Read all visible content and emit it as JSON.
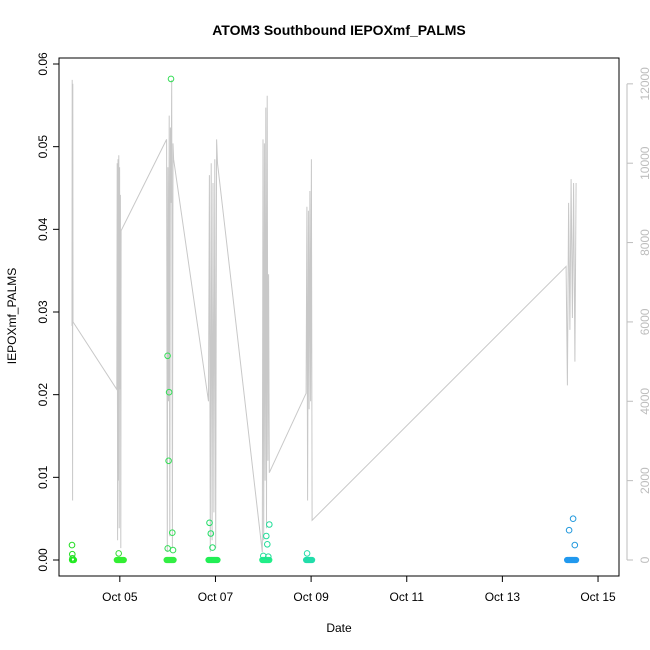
{
  "chart_data": {
    "type": "scatter",
    "title": "ATOM3 Southbound IEPOXmf_PALMS",
    "xlabel": "Date",
    "ylabel": "IEPOXmf_PALMS",
    "x_range": [
      "2017-10-04 00:00",
      "2017-10-15 04:00"
    ],
    "ylim": [
      0,
      0.06
    ],
    "y2lim": [
      0,
      12500
    ],
    "x_ticks": [
      {
        "label": "Oct 05",
        "date": "2017-10-05"
      },
      {
        "label": "Oct 07",
        "date": "2017-10-07"
      },
      {
        "label": "Oct 09",
        "date": "2017-10-09"
      },
      {
        "label": "Oct 11",
        "date": "2017-10-11"
      },
      {
        "label": "Oct 13",
        "date": "2017-10-13"
      },
      {
        "label": "Oct 15",
        "date": "2017-10-15"
      }
    ],
    "y_ticks": [
      "0.00",
      "0.01",
      "0.02",
      "0.03",
      "0.04",
      "0.05",
      "0.06"
    ],
    "y2_ticks": [
      "0",
      "2000",
      "4000",
      "6000",
      "8000",
      "10000",
      "12000"
    ],
    "grid": false,
    "legend": "none",
    "colors": {
      "secondary_line": "#c8c8c8",
      "axis": "#000000",
      "right_axis": "#bdbdbd"
    },
    "series": [
      {
        "role": "points (left axis)",
        "points": [
          {
            "date": "2017-10-04 00:00",
            "y": 0.0018,
            "color": "#22dd22"
          },
          {
            "date": "2017-10-04 00:10",
            "y": 0.0007,
            "color": "#22dd22"
          },
          {
            "date": "2017-10-04 00:15",
            "y": 0.0002,
            "color": "#22dd22"
          },
          {
            "date": "2017-10-04 23:25",
            "y": 0.0008,
            "color": "#33dd33"
          },
          {
            "date": "2017-10-06 00:00",
            "y": 0.0247,
            "color": "#33dd55"
          },
          {
            "date": "2017-10-06 00:03",
            "y": 0.0014,
            "color": "#33dd55"
          },
          {
            "date": "2017-10-06 00:30",
            "y": 0.012,
            "color": "#33dd55"
          },
          {
            "date": "2017-10-06 00:45",
            "y": 0.0203,
            "color": "#33dd55"
          },
          {
            "date": "2017-10-06 01:40",
            "y": 0.0582,
            "color": "#33dd55"
          },
          {
            "date": "2017-10-06 02:20",
            "y": 0.0033,
            "color": "#33dd55"
          },
          {
            "date": "2017-10-06 02:40",
            "y": 0.0012,
            "color": "#33dd55"
          },
          {
            "date": "2017-10-06 21:00",
            "y": 0.0045,
            "color": "#22dd66"
          },
          {
            "date": "2017-10-06 21:40",
            "y": 0.0032,
            "color": "#22dd66"
          },
          {
            "date": "2017-10-06 22:30",
            "y": 0.0015,
            "color": "#22dd66"
          },
          {
            "date": "2017-10-08 00:00",
            "y": 0.0005,
            "color": "#22dd99"
          },
          {
            "date": "2017-10-08 01:30",
            "y": 0.0029,
            "color": "#22dd99"
          },
          {
            "date": "2017-10-08 03:00",
            "y": 0.0043,
            "color": "#22dd99"
          },
          {
            "date": "2017-10-08 02:00",
            "y": 0.0019,
            "color": "#22dd99"
          },
          {
            "date": "2017-10-08 02:30",
            "y": 0.0004,
            "color": "#22dd99"
          },
          {
            "date": "2017-10-08 22:00",
            "y": 0.0008,
            "color": "#22ddaa"
          },
          {
            "date": "2017-10-14 09:30",
            "y": 0.0036,
            "color": "#2299dd"
          },
          {
            "date": "2017-10-14 11:30",
            "y": 0.005,
            "color": "#2299dd"
          },
          {
            "date": "2017-10-14 12:20",
            "y": 0.0018,
            "color": "#2299dd"
          }
        ],
        "baseline_clusters": [
          {
            "from": "2017-10-04 00:00",
            "to": "2017-10-04 01:00",
            "y": 0.0,
            "color": "#22ee22"
          },
          {
            "from": "2017-10-04 22:30",
            "to": "2017-10-05 02:00",
            "y": 0.0,
            "color": "#33ee33"
          },
          {
            "from": "2017-10-05 23:30",
            "to": "2017-10-06 03:00",
            "y": 0.0,
            "color": "#33ee44"
          },
          {
            "from": "2017-10-06 20:30",
            "to": "2017-10-07 01:00",
            "y": 0.0,
            "color": "#22ee55"
          },
          {
            "from": "2017-10-07 23:30",
            "to": "2017-10-08 03:00",
            "y": 0.0,
            "color": "#22ee88"
          },
          {
            "from": "2017-10-08 21:30",
            "to": "2017-10-09 00:30",
            "y": 0.0,
            "color": "#22ddaa"
          },
          {
            "from": "2017-10-14 08:30",
            "to": "2017-10-14 13:00",
            "y": 0.0,
            "color": "#2299ee"
          }
        ]
      },
      {
        "role": "line (right axis)",
        "color": "#c8c8c8",
        "bursts": [
          {
            "from": "2017-10-04 00:00",
            "to": "2017-10-04 00:30",
            "values": [
              5900,
              12100,
              6900,
              1500,
              12000,
              6000
            ]
          },
          {
            "from": "2017-10-04 22:30",
            "to": "2017-10-05 00:40",
            "values": [
              4300,
              10000,
              500,
              10100,
              2000,
              10200,
              800,
              9900,
              4300,
              9200,
              300,
              8300
            ]
          },
          {
            "from": "2017-10-05 23:30",
            "to": "2017-10-06 03:00",
            "values": [
              10600,
              200,
              9900,
              4000,
              11200,
              600,
              10900,
              9000,
              12100,
              300,
              10500,
              10100
            ]
          },
          {
            "from": "2017-10-06 20:30",
            "to": "2017-10-07 01:00",
            "values": [
              4000,
              9700,
              200,
              10000,
              500,
              9500,
              1200,
              10100,
              300,
              10600,
              10000
            ]
          },
          {
            "from": "2017-10-07 23:30",
            "to": "2017-10-08 03:00",
            "values": [
              200,
              10600,
              500,
              10500,
              2000,
              11400,
              800,
              11700,
              2500,
              7200,
              2200
            ]
          },
          {
            "from": "2017-10-08 21:30",
            "to": "2017-10-09 00:30",
            "values": [
              4200,
              8900,
              1500,
              8800,
              3800,
              9300,
              4000,
              10100,
              1000
            ]
          },
          {
            "from": "2017-10-14 08:00",
            "to": "2017-10-14 13:00",
            "values": [
              7400,
              4400,
              9000,
              5800,
              9600,
              6100,
              9500,
              5000,
              9500
            ]
          }
        ]
      }
    ]
  }
}
